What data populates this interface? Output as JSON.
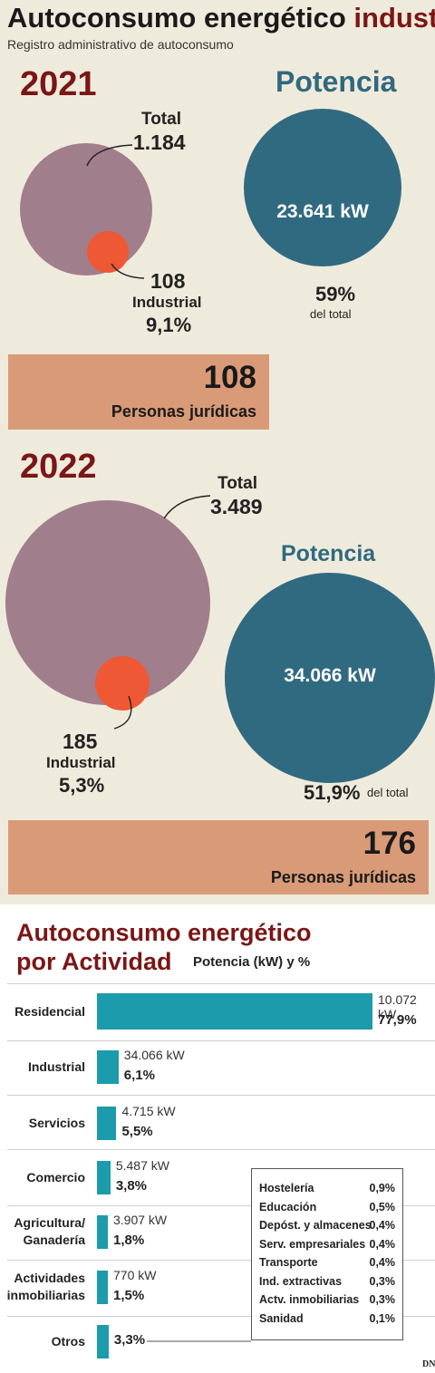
{
  "header": {
    "title_main": "Autoconsumo energético",
    "title_accent": "industrial",
    "subtitle": "Registro administrativo de autoconsumo"
  },
  "y2021": {
    "year": "2021",
    "total_label": "Total",
    "total_value": "1.184",
    "industrial_value": "108",
    "industrial_label": "Industrial",
    "industrial_pct": "9,1%",
    "potencia_title": "Potencia",
    "potencia_value": "23.641 kW",
    "potencia_pct": "59%",
    "potencia_note": "del total",
    "juridicas_value": "108",
    "juridicas_label": "Personas jurídicas"
  },
  "y2022": {
    "year": "2022",
    "total_label": "Total",
    "total_value": "3.489",
    "industrial_value": "185",
    "industrial_label": "Industrial",
    "industrial_pct": "5,3%",
    "potencia_title": "Potencia",
    "potencia_value": "34.066 kW",
    "potencia_pct": "51,9%",
    "potencia_note": "del total",
    "juridicas_value": "176",
    "juridicas_label": "Personas jurídicas"
  },
  "section2": {
    "title_line1": "Autoconsumo energético",
    "title_line2": "por Actividad",
    "subtitle": "Potencia (kW) y %"
  },
  "colors": {
    "total_circle": "#a17e8c",
    "industrial_circle": "#ee5834",
    "potencia_circle": "#306a81",
    "bar": "#1b9bab",
    "box": "#d99a77",
    "year": "#7b1616"
  },
  "chart_data": {
    "type": "bar",
    "orientation": "horizontal",
    "categories": [
      "Residencial",
      "Industrial",
      "Servicios",
      "Comercio",
      "Agricultura/ Ganadería",
      "Actividades inmobiliarias",
      "Otros"
    ],
    "category_lines": [
      [
        "Residencial"
      ],
      [
        "Industrial"
      ],
      [
        "Servicios"
      ],
      [
        "Comercio"
      ],
      [
        "Agricultura/",
        "Ganadería"
      ],
      [
        "Actividades",
        "inmobiliarias"
      ],
      [
        "Otros"
      ]
    ],
    "value_labels": [
      "10.072 kW",
      "34.066 kW",
      "4.715 kW",
      "5.487 kW",
      "3.907 kW",
      "770 kW",
      ""
    ],
    "pct_labels": [
      "77,9%",
      "6,1%",
      "5,5%",
      "3,8%",
      "1,8%",
      "1,5%",
      "3,3%"
    ],
    "values": [
      77.9,
      6.1,
      5.5,
      3.8,
      1.8,
      1.5,
      3.3
    ],
    "unit": "%"
  },
  "otros_breakdown": [
    {
      "label": "Hostelería",
      "pct": "0,9%"
    },
    {
      "label": "Educación",
      "pct": "0,5%"
    },
    {
      "label": "Depóst. y almacenes",
      "pct": "0,4%"
    },
    {
      "label": "Serv. empresariales",
      "pct": "0,4%"
    },
    {
      "label": "Transporte",
      "pct": "0,4%"
    },
    {
      "label": "Ind. extractivas",
      "pct": "0,3%"
    },
    {
      "label": "Actv. inmobiliarias",
      "pct": "0,3%"
    },
    {
      "label": "Sanidad",
      "pct": "0,1%"
    }
  ],
  "logo": "DN"
}
